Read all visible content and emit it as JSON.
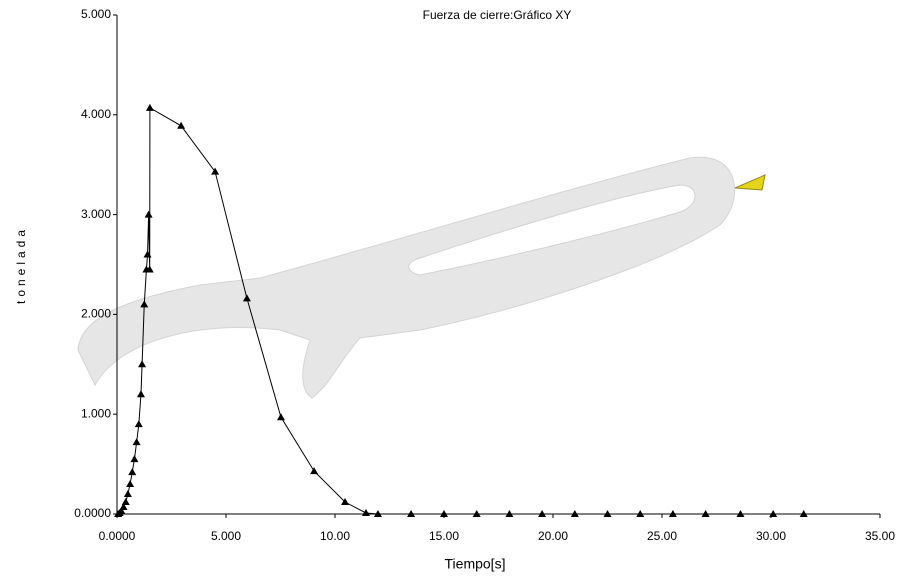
{
  "chart_data": {
    "type": "line",
    "title": "Fuerza de cierre:Gráfico XY",
    "x_label": "Tiempo[s]",
    "y_label": "tonelada",
    "xlim": [
      0,
      35
    ],
    "ylim": [
      0,
      5
    ],
    "xticks": [
      {
        "value": 0,
        "label": "0.0000"
      },
      {
        "value": 5,
        "label": "5.000"
      },
      {
        "value": 10,
        "label": "10.00"
      },
      {
        "value": 15,
        "label": "15.00"
      },
      {
        "value": 20,
        "label": "20.00"
      },
      {
        "value": 25,
        "label": "25.00"
      },
      {
        "value": 30,
        "label": "30.00"
      },
      {
        "value": 35,
        "label": "35.00"
      }
    ],
    "yticks": [
      {
        "value": 0,
        "label": "0.0000"
      },
      {
        "value": 1,
        "label": "1.000"
      },
      {
        "value": 2,
        "label": "2.000"
      },
      {
        "value": 3,
        "label": "3.000"
      },
      {
        "value": 4,
        "label": "4.000"
      },
      {
        "value": 5,
        "label": "5.000"
      }
    ],
    "series": [
      {
        "color": "#000000",
        "x": [
          0.05,
          0.12,
          0.2,
          0.3,
          0.4,
          0.5,
          0.6,
          0.7,
          0.8,
          0.9,
          1.0,
          1.1,
          1.15,
          1.25,
          1.35,
          1.4,
          1.45,
          1.5,
          1.51,
          2.94,
          4.5,
          5.96,
          7.52,
          9.04,
          10.46,
          11.42,
          11.97,
          13.49,
          15.0,
          16.5,
          18.0,
          19.5,
          21.0,
          22.5,
          24.0,
          25.5,
          27.0,
          28.6,
          30.1,
          31.5
        ],
        "values": [
          0.0,
          0.01,
          0.03,
          0.07,
          0.12,
          0.2,
          0.3,
          0.42,
          0.55,
          0.72,
          0.9,
          1.2,
          1.5,
          2.1,
          2.45,
          2.6,
          3.0,
          2.45,
          4.07,
          3.89,
          3.43,
          2.16,
          0.97,
          0.43,
          0.12,
          0.01,
          0.0,
          0.0,
          0.0,
          0.0,
          0.0,
          0.0,
          0.0,
          0.0,
          0.0,
          0.0,
          0.0,
          0.0,
          0.0,
          0.0
        ]
      }
    ]
  }
}
